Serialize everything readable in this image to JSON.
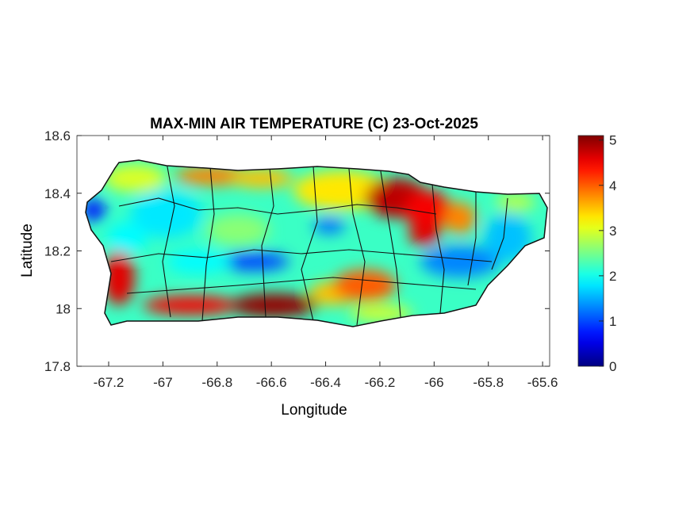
{
  "chart_data": {
    "type": "heatmap",
    "title": "MAX-MIN AIR TEMPERATURE (C) 23-Oct-2025",
    "xlabel": "Longitude",
    "ylabel": "Latitude",
    "xlim": [
      -67.317,
      -65.574
    ],
    "ylim": [
      17.8,
      18.6
    ],
    "xticks": [
      -67.2,
      -67,
      -66.8,
      -66.6,
      -66.4,
      -66.2,
      -66,
      -65.8,
      -65.6
    ],
    "xtick_labels": [
      "-67.2",
      "-67",
      "-66.8",
      "-66.6",
      "-66.4",
      "-66.2",
      "-66",
      "-65.8",
      "-65.6"
    ],
    "yticks": [
      17.8,
      18,
      18.2,
      18.4,
      18.6
    ],
    "ytick_labels": [
      "17.8",
      "18",
      "18.2",
      "18.4",
      "18.6"
    ],
    "colormap": "jet",
    "colorbar": {
      "range": [
        0,
        5.1
      ],
      "ticks": [
        0,
        1,
        2,
        3,
        4,
        5
      ],
      "tick_labels": [
        "0",
        "1",
        "2",
        "3",
        "4",
        "5"
      ],
      "placement": "right"
    },
    "grid": false,
    "field_samples": [
      {
        "lon": -67.1,
        "lat": 18.44,
        "value": 3.0
      },
      {
        "lon": -66.81,
        "lat": 18.45,
        "value": 3.8
      },
      {
        "lon": -66.66,
        "lat": 18.44,
        "value": 3.5
      },
      {
        "lon": -66.35,
        "lat": 18.4,
        "value": 3.3
      },
      {
        "lon": -66.13,
        "lat": 18.37,
        "value": 4.8
      },
      {
        "lon": -66.01,
        "lat": 18.33,
        "value": 4.5
      },
      {
        "lon": -66.02,
        "lat": 18.25,
        "value": 4.6
      },
      {
        "lon": -67.16,
        "lat": 18.1,
        "value": 4.6
      },
      {
        "lon": -66.9,
        "lat": 18.0,
        "value": 4.5
      },
      {
        "lon": -66.59,
        "lat": 18.02,
        "value": 5.0
      },
      {
        "lon": -66.2,
        "lat": 18.1,
        "value": 4.0
      },
      {
        "lon": -66.64,
        "lat": 18.16,
        "value": 1.0
      },
      {
        "lon": -67.28,
        "lat": 18.36,
        "value": 0.8
      },
      {
        "lon": -65.9,
        "lat": 18.15,
        "value": 1.3
      }
    ]
  }
}
